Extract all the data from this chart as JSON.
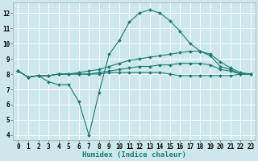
{
  "xlabel": "Humidex (Indice chaleur)",
  "bg_color": "#cce8ec",
  "grid_color": "#ffffff",
  "line_color": "#1a7a6e",
  "xlim": [
    -0.5,
    23.5
  ],
  "ylim": [
    3.7,
    12.7
  ],
  "xticks": [
    0,
    1,
    2,
    3,
    4,
    5,
    6,
    7,
    8,
    9,
    10,
    11,
    12,
    13,
    14,
    15,
    16,
    17,
    18,
    19,
    20,
    21,
    22,
    23
  ],
  "yticks": [
    4,
    5,
    6,
    7,
    8,
    9,
    10,
    11,
    12
  ],
  "lines": [
    {
      "x": [
        0,
        1,
        2,
        3,
        4,
        5,
        6,
        7,
        8,
        9,
        10,
        11,
        12,
        13,
        14,
        15,
        16,
        17,
        18,
        19,
        20,
        21,
        22,
        23
      ],
      "y": [
        8.2,
        7.8,
        7.9,
        7.5,
        7.3,
        7.3,
        6.2,
        4.0,
        6.8,
        9.3,
        10.2,
        11.4,
        12.0,
        12.2,
        12.0,
        11.5,
        10.8,
        10.0,
        9.5,
        9.2,
        8.5,
        8.3,
        8.0,
        8.0
      ]
    },
    {
      "x": [
        0,
        1,
        2,
        3,
        4,
        5,
        6,
        7,
        8,
        9,
        10,
        11,
        12,
        13,
        14,
        15,
        16,
        17,
        18,
        19,
        20,
        21,
        22,
        23
      ],
      "y": [
        8.2,
        7.8,
        7.9,
        7.9,
        8.0,
        8.0,
        8.1,
        8.2,
        8.3,
        8.5,
        8.7,
        8.9,
        9.0,
        9.1,
        9.2,
        9.3,
        9.4,
        9.5,
        9.5,
        9.3,
        8.8,
        8.4,
        8.1,
        8.0
      ]
    },
    {
      "x": [
        0,
        1,
        2,
        3,
        4,
        5,
        6,
        7,
        8,
        9,
        10,
        11,
        12,
        13,
        14,
        15,
        16,
        17,
        18,
        19,
        20,
        21,
        22,
        23
      ],
      "y": [
        8.2,
        7.8,
        7.9,
        7.9,
        8.0,
        8.0,
        8.0,
        8.0,
        8.1,
        8.2,
        8.3,
        8.4,
        8.5,
        8.5,
        8.6,
        8.6,
        8.7,
        8.7,
        8.7,
        8.6,
        8.3,
        8.2,
        8.0,
        8.0
      ]
    },
    {
      "x": [
        0,
        1,
        2,
        3,
        4,
        5,
        6,
        7,
        8,
        9,
        10,
        11,
        12,
        13,
        14,
        15,
        16,
        17,
        18,
        19,
        20,
        21,
        22,
        23
      ],
      "y": [
        8.2,
        7.8,
        7.9,
        7.9,
        8.0,
        8.0,
        8.0,
        8.0,
        8.0,
        8.1,
        8.1,
        8.1,
        8.1,
        8.1,
        8.1,
        8.0,
        7.9,
        7.9,
        7.9,
        7.9,
        7.9,
        7.9,
        8.0,
        8.0
      ]
    }
  ],
  "marker": "D",
  "markersize": 2.0,
  "linewidth": 0.8,
  "tick_fontsize": 5.5,
  "xlabel_fontsize": 6.5
}
